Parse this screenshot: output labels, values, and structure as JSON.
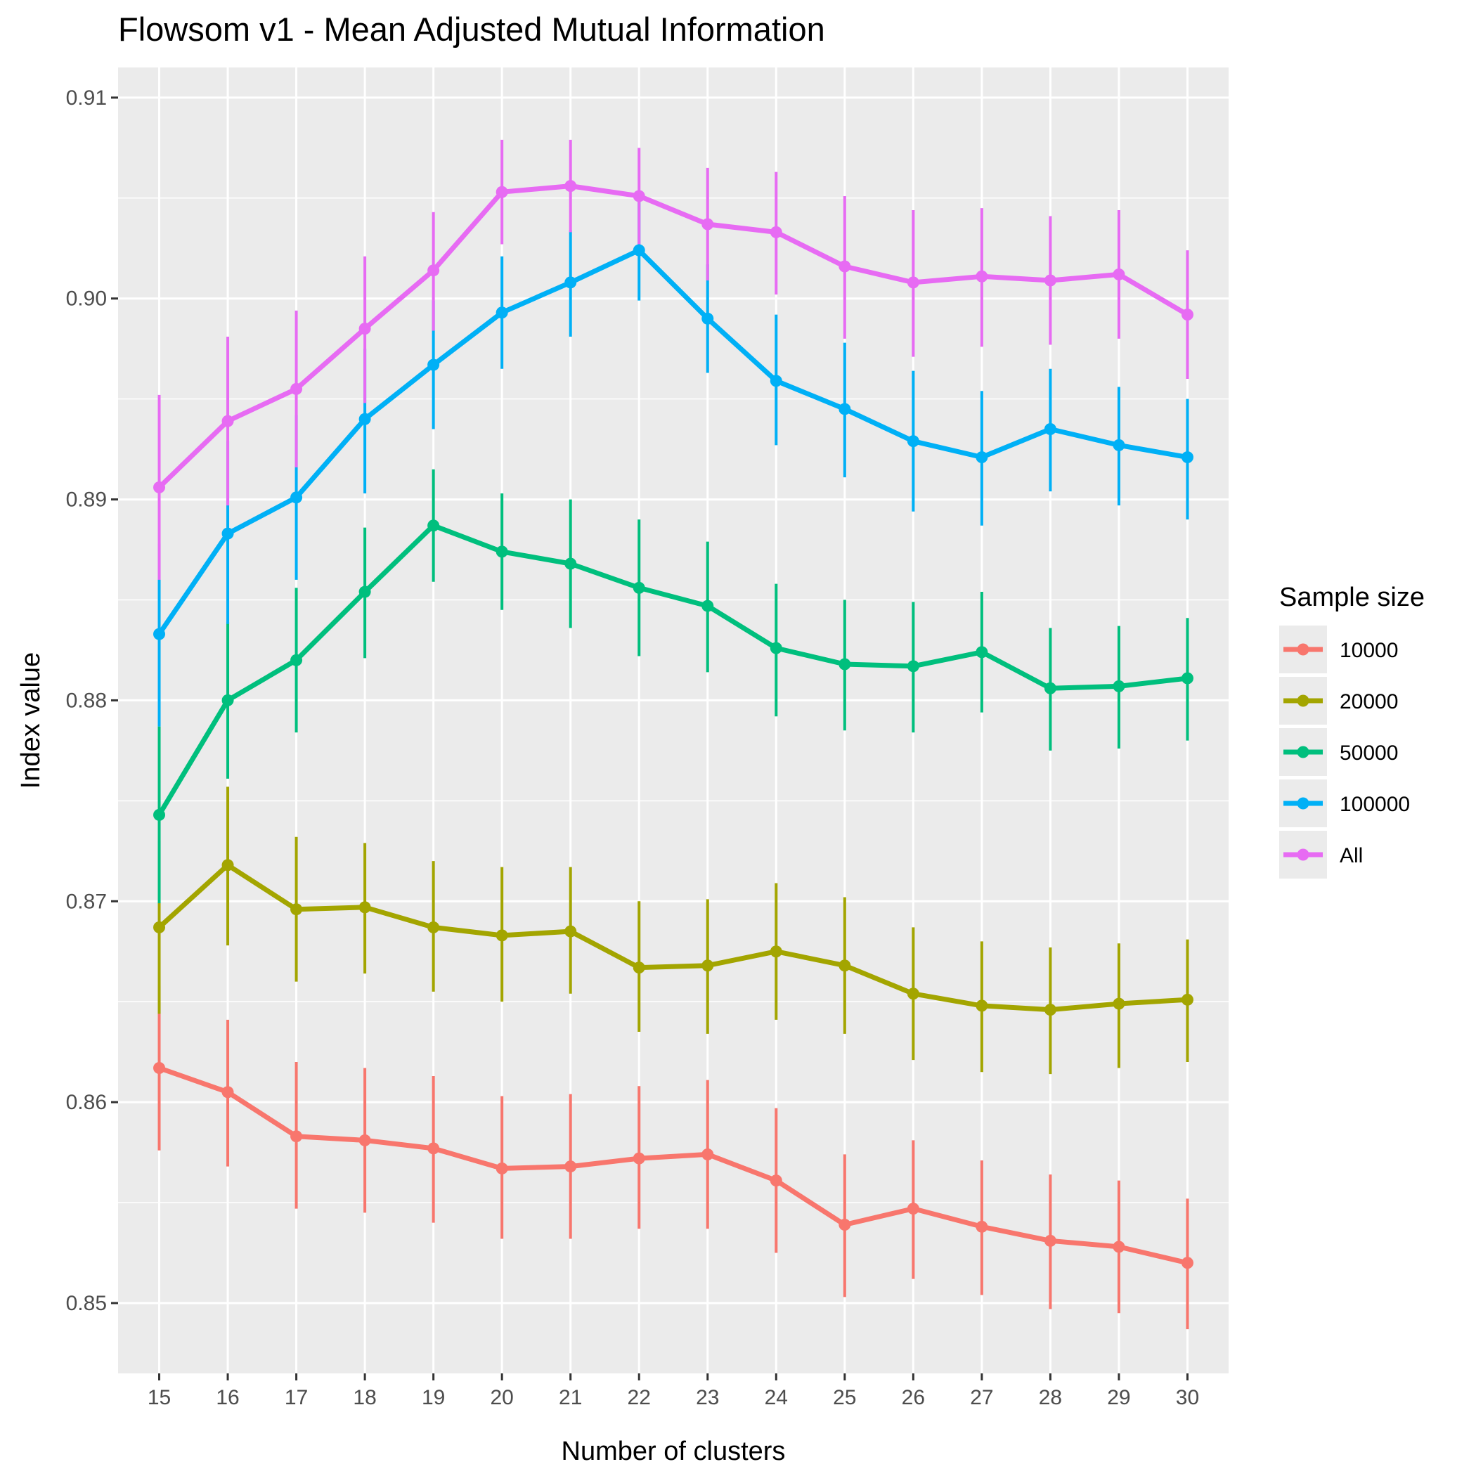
{
  "chart_data": {
    "type": "line",
    "title": "Flowsom v1 - Mean Adjusted Mutual Information",
    "xlabel": "Number of clusters",
    "ylabel": "Index value",
    "x": [
      15,
      16,
      17,
      18,
      19,
      20,
      21,
      22,
      23,
      24,
      25,
      26,
      27,
      28,
      29,
      30
    ],
    "x_ticks": [
      "15",
      "16",
      "17",
      "18",
      "19",
      "20",
      "21",
      "22",
      "23",
      "24",
      "25",
      "26",
      "27",
      "28",
      "29",
      "30"
    ],
    "y_ticks": [
      "0.85",
      "0.86",
      "0.87",
      "0.88",
      "0.89",
      "0.90",
      "0.91"
    ],
    "ylim": [
      0.8465,
      0.9115
    ],
    "grid": true,
    "background": "#ebebeb",
    "legend": {
      "title": "Sample size",
      "position": "right"
    },
    "series": [
      {
        "name": "10000",
        "color": "#F8766D",
        "values": [
          0.8617,
          0.8605,
          0.8583,
          0.8581,
          0.8577,
          0.8567,
          0.8568,
          0.8572,
          0.8574,
          0.8561,
          0.8539,
          0.8547,
          0.8538,
          0.8531,
          0.8528,
          0.852
        ],
        "lower": [
          0.8576,
          0.8568,
          0.8547,
          0.8545,
          0.854,
          0.8532,
          0.8532,
          0.8537,
          0.8537,
          0.8525,
          0.8503,
          0.8512,
          0.8504,
          0.8497,
          0.8495,
          0.8487
        ],
        "upper": [
          0.8658,
          0.8641,
          0.862,
          0.8617,
          0.8613,
          0.8603,
          0.8604,
          0.8608,
          0.8611,
          0.8597,
          0.8574,
          0.8581,
          0.8571,
          0.8564,
          0.8561,
          0.8552
        ]
      },
      {
        "name": "20000",
        "color": "#A3A500",
        "values": [
          0.8687,
          0.8718,
          0.8696,
          0.8697,
          0.8687,
          0.8683,
          0.8685,
          0.8667,
          0.8668,
          0.8675,
          0.8668,
          0.8654,
          0.8648,
          0.8646,
          0.8649,
          0.8651
        ],
        "lower": [
          0.8644,
          0.8678,
          0.866,
          0.8664,
          0.8655,
          0.865,
          0.8654,
          0.8635,
          0.8634,
          0.8641,
          0.8634,
          0.8621,
          0.8615,
          0.8614,
          0.8617,
          0.862
        ],
        "upper": [
          0.873,
          0.8757,
          0.8732,
          0.8729,
          0.872,
          0.8717,
          0.8717,
          0.87,
          0.8701,
          0.8709,
          0.8702,
          0.8687,
          0.868,
          0.8677,
          0.8679,
          0.8681
        ]
      },
      {
        "name": "50000",
        "color": "#00BF7D",
        "values": [
          0.8743,
          0.88,
          0.882,
          0.8854,
          0.8887,
          0.8874,
          0.8868,
          0.8856,
          0.8847,
          0.8826,
          0.8818,
          0.8817,
          0.8824,
          0.8806,
          0.8807,
          0.8811
        ],
        "lower": [
          0.8699,
          0.8761,
          0.8784,
          0.8821,
          0.8859,
          0.8845,
          0.8836,
          0.8822,
          0.8814,
          0.8792,
          0.8785,
          0.8784,
          0.8794,
          0.8775,
          0.8776,
          0.878
        ],
        "upper": [
          0.8787,
          0.8839,
          0.8856,
          0.8886,
          0.8915,
          0.8903,
          0.89,
          0.889,
          0.8879,
          0.8858,
          0.885,
          0.8849,
          0.8854,
          0.8836,
          0.8837,
          0.8841
        ]
      },
      {
        "name": "100000",
        "color": "#00B0F6",
        "values": [
          0.8833,
          0.8883,
          0.8901,
          0.894,
          0.8967,
          0.8993,
          0.9008,
          0.9024,
          0.899,
          0.8959,
          0.8945,
          0.8929,
          0.8921,
          0.8935,
          0.8927,
          0.8921
        ],
        "lower": [
          0.8787,
          0.8838,
          0.886,
          0.8903,
          0.8935,
          0.8965,
          0.8981,
          0.8999,
          0.8963,
          0.8927,
          0.8911,
          0.8894,
          0.8887,
          0.8904,
          0.8897,
          0.889
        ],
        "upper": [
          0.8878,
          0.8929,
          0.8942,
          0.8975,
          0.8999,
          0.9021,
          0.9034,
          0.9049,
          0.9017,
          0.8992,
          0.8978,
          0.8964,
          0.8954,
          0.8965,
          0.8956,
          0.895
        ]
      },
      {
        "name": "All",
        "color": "#E76BF3",
        "values": [
          0.8906,
          0.8939,
          0.8955,
          0.8985,
          0.9014,
          0.9053,
          0.9056,
          0.9051,
          0.9037,
          0.9033,
          0.9016,
          0.9008,
          0.9011,
          0.9009,
          0.9012,
          0.8992
        ],
        "lower": [
          0.886,
          0.8897,
          0.8916,
          0.8948,
          0.8984,
          0.9027,
          0.9033,
          0.9027,
          0.9009,
          0.9002,
          0.898,
          0.8971,
          0.8976,
          0.8977,
          0.898,
          0.896
        ],
        "upper": [
          0.8952,
          0.8981,
          0.8994,
          0.9021,
          0.9043,
          0.9079,
          0.9079,
          0.9075,
          0.9065,
          0.9063,
          0.9051,
          0.9044,
          0.9045,
          0.9041,
          0.9044,
          0.9024
        ]
      }
    ]
  }
}
